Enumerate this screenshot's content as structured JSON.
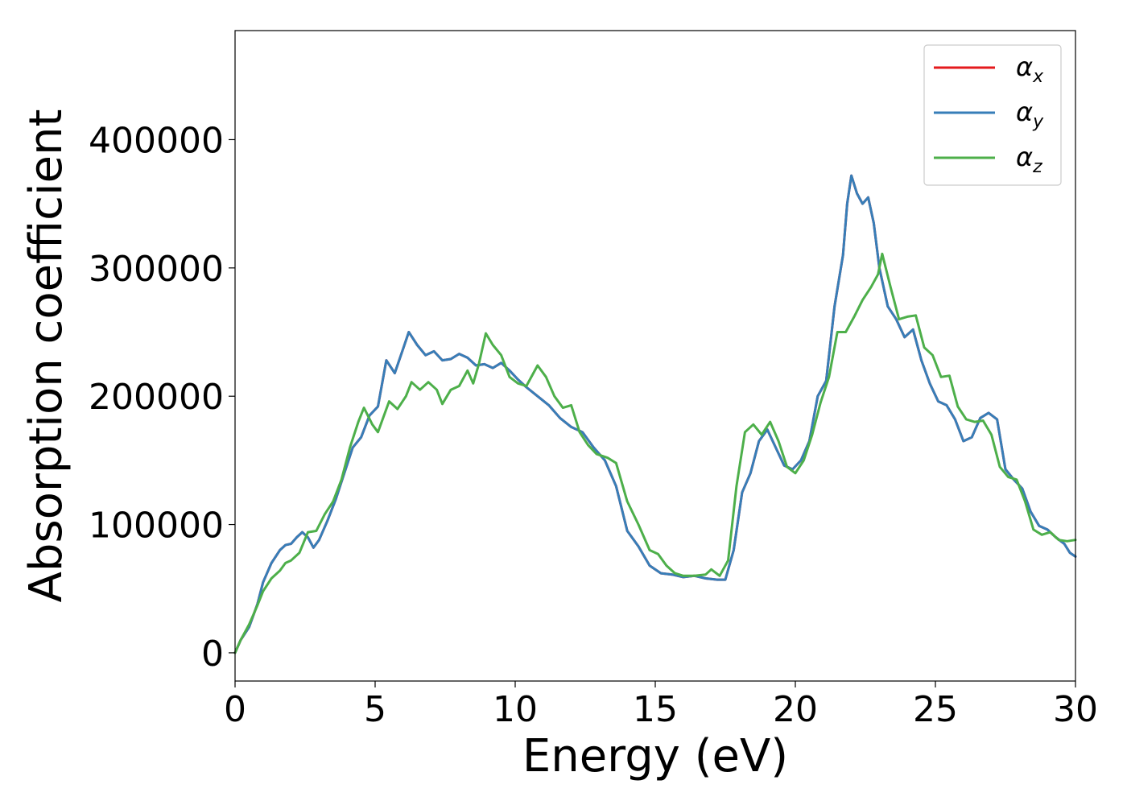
{
  "chart_data": {
    "type": "line",
    "xlabel": "Energy (eV)",
    "ylabel": "Absorption coefficient",
    "xlim": [
      0,
      30
    ],
    "ylim": [
      -22000,
      485000
    ],
    "xticks": [
      0,
      5,
      10,
      15,
      20,
      25,
      30
    ],
    "yticks": [
      0,
      100000,
      200000,
      300000,
      400000
    ],
    "grid": false,
    "legend_position": "top-right",
    "series": [
      {
        "name": "α_x",
        "label_main": "α",
        "label_sub": "x",
        "color": "#e41a1c",
        "points": [
          [
            0,
            0
          ],
          [
            0.2,
            10000
          ],
          [
            0.5,
            20000
          ],
          [
            0.8,
            38000
          ],
          [
            1.0,
            55000
          ],
          [
            1.3,
            70000
          ],
          [
            1.6,
            80000
          ],
          [
            1.8,
            84000
          ],
          [
            2.0,
            85000
          ],
          [
            2.2,
            90000
          ],
          [
            2.4,
            94000
          ],
          [
            2.6,
            90000
          ],
          [
            2.8,
            82000
          ],
          [
            3.0,
            88000
          ],
          [
            3.3,
            103000
          ],
          [
            3.6,
            120000
          ],
          [
            3.9,
            140000
          ],
          [
            4.2,
            160000
          ],
          [
            4.5,
            168000
          ],
          [
            4.8,
            185000
          ],
          [
            5.1,
            192000
          ],
          [
            5.4,
            228000
          ],
          [
            5.7,
            218000
          ],
          [
            6.0,
            237000
          ],
          [
            6.2,
            250000
          ],
          [
            6.5,
            240000
          ],
          [
            6.8,
            232000
          ],
          [
            7.1,
            235000
          ],
          [
            7.4,
            228000
          ],
          [
            7.7,
            229000
          ],
          [
            8.0,
            233000
          ],
          [
            8.3,
            230000
          ],
          [
            8.6,
            224000
          ],
          [
            8.9,
            225000
          ],
          [
            9.2,
            222000
          ],
          [
            9.5,
            226000
          ],
          [
            9.8,
            220000
          ],
          [
            10.1,
            213000
          ],
          [
            10.4,
            207000
          ],
          [
            10.8,
            200000
          ],
          [
            11.2,
            193000
          ],
          [
            11.6,
            183000
          ],
          [
            12.0,
            176000
          ],
          [
            12.4,
            172000
          ],
          [
            12.8,
            160000
          ],
          [
            13.2,
            150000
          ],
          [
            13.6,
            130000
          ],
          [
            14.0,
            95000
          ],
          [
            14.4,
            83000
          ],
          [
            14.8,
            68000
          ],
          [
            15.2,
            62000
          ],
          [
            15.6,
            61000
          ],
          [
            16.0,
            59000
          ],
          [
            16.4,
            60000
          ],
          [
            16.8,
            58000
          ],
          [
            17.2,
            57000
          ],
          [
            17.5,
            57000
          ],
          [
            17.8,
            80000
          ],
          [
            18.1,
            125000
          ],
          [
            18.4,
            140000
          ],
          [
            18.7,
            165000
          ],
          [
            19.0,
            174000
          ],
          [
            19.3,
            160000
          ],
          [
            19.6,
            146000
          ],
          [
            19.9,
            143000
          ],
          [
            20.2,
            150000
          ],
          [
            20.5,
            165000
          ],
          [
            20.8,
            200000
          ],
          [
            21.1,
            212000
          ],
          [
            21.4,
            270000
          ],
          [
            21.7,
            310000
          ],
          [
            21.85,
            350000
          ],
          [
            22.0,
            372000
          ],
          [
            22.2,
            358000
          ],
          [
            22.4,
            350000
          ],
          [
            22.6,
            355000
          ],
          [
            22.8,
            335000
          ],
          [
            23.0,
            300000
          ],
          [
            23.3,
            270000
          ],
          [
            23.6,
            260000
          ],
          [
            23.9,
            246000
          ],
          [
            24.2,
            252000
          ],
          [
            24.5,
            228000
          ],
          [
            24.8,
            210000
          ],
          [
            25.1,
            196000
          ],
          [
            25.4,
            193000
          ],
          [
            25.7,
            182000
          ],
          [
            26.0,
            165000
          ],
          [
            26.3,
            168000
          ],
          [
            26.6,
            183000
          ],
          [
            26.9,
            187000
          ],
          [
            27.2,
            182000
          ],
          [
            27.5,
            143000
          ],
          [
            27.8,
            135000
          ],
          [
            28.1,
            128000
          ],
          [
            28.4,
            110000
          ],
          [
            28.7,
            99000
          ],
          [
            29.0,
            96000
          ],
          [
            29.3,
            90000
          ],
          [
            29.6,
            85000
          ],
          [
            29.8,
            78000
          ],
          [
            30.0,
            75000
          ]
        ]
      },
      {
        "name": "α_y",
        "label_main": "α",
        "label_sub": "y",
        "color": "#377eb8",
        "points": [
          [
            0,
            0
          ],
          [
            0.2,
            10000
          ],
          [
            0.5,
            20000
          ],
          [
            0.8,
            38000
          ],
          [
            1.0,
            55000
          ],
          [
            1.3,
            70000
          ],
          [
            1.6,
            80000
          ],
          [
            1.8,
            84000
          ],
          [
            2.0,
            85000
          ],
          [
            2.2,
            90000
          ],
          [
            2.4,
            94000
          ],
          [
            2.6,
            90000
          ],
          [
            2.8,
            82000
          ],
          [
            3.0,
            88000
          ],
          [
            3.3,
            103000
          ],
          [
            3.6,
            120000
          ],
          [
            3.9,
            140000
          ],
          [
            4.2,
            160000
          ],
          [
            4.5,
            168000
          ],
          [
            4.8,
            185000
          ],
          [
            5.1,
            192000
          ],
          [
            5.4,
            228000
          ],
          [
            5.7,
            218000
          ],
          [
            6.0,
            237000
          ],
          [
            6.2,
            250000
          ],
          [
            6.5,
            240000
          ],
          [
            6.8,
            232000
          ],
          [
            7.1,
            235000
          ],
          [
            7.4,
            228000
          ],
          [
            7.7,
            229000
          ],
          [
            8.0,
            233000
          ],
          [
            8.3,
            230000
          ],
          [
            8.6,
            224000
          ],
          [
            8.9,
            225000
          ],
          [
            9.2,
            222000
          ],
          [
            9.5,
            226000
          ],
          [
            9.8,
            220000
          ],
          [
            10.1,
            213000
          ],
          [
            10.4,
            207000
          ],
          [
            10.8,
            200000
          ],
          [
            11.2,
            193000
          ],
          [
            11.6,
            183000
          ],
          [
            12.0,
            176000
          ],
          [
            12.4,
            172000
          ],
          [
            12.8,
            160000
          ],
          [
            13.2,
            150000
          ],
          [
            13.6,
            130000
          ],
          [
            14.0,
            95000
          ],
          [
            14.4,
            83000
          ],
          [
            14.8,
            68000
          ],
          [
            15.2,
            62000
          ],
          [
            15.6,
            61000
          ],
          [
            16.0,
            59000
          ],
          [
            16.4,
            60000
          ],
          [
            16.8,
            58000
          ],
          [
            17.2,
            57000
          ],
          [
            17.5,
            57000
          ],
          [
            17.8,
            80000
          ],
          [
            18.1,
            125000
          ],
          [
            18.4,
            140000
          ],
          [
            18.7,
            165000
          ],
          [
            19.0,
            174000
          ],
          [
            19.3,
            160000
          ],
          [
            19.6,
            146000
          ],
          [
            19.9,
            143000
          ],
          [
            20.2,
            150000
          ],
          [
            20.5,
            165000
          ],
          [
            20.8,
            200000
          ],
          [
            21.1,
            212000
          ],
          [
            21.4,
            270000
          ],
          [
            21.7,
            310000
          ],
          [
            21.85,
            350000
          ],
          [
            22.0,
            372000
          ],
          [
            22.2,
            358000
          ],
          [
            22.4,
            350000
          ],
          [
            22.6,
            355000
          ],
          [
            22.8,
            335000
          ],
          [
            23.0,
            300000
          ],
          [
            23.3,
            270000
          ],
          [
            23.6,
            260000
          ],
          [
            23.9,
            246000
          ],
          [
            24.2,
            252000
          ],
          [
            24.5,
            228000
          ],
          [
            24.8,
            210000
          ],
          [
            25.1,
            196000
          ],
          [
            25.4,
            193000
          ],
          [
            25.7,
            182000
          ],
          [
            26.0,
            165000
          ],
          [
            26.3,
            168000
          ],
          [
            26.6,
            183000
          ],
          [
            26.9,
            187000
          ],
          [
            27.2,
            182000
          ],
          [
            27.5,
            143000
          ],
          [
            27.8,
            135000
          ],
          [
            28.1,
            128000
          ],
          [
            28.4,
            110000
          ],
          [
            28.7,
            99000
          ],
          [
            29.0,
            96000
          ],
          [
            29.3,
            90000
          ],
          [
            29.6,
            85000
          ],
          [
            29.8,
            78000
          ],
          [
            30.0,
            75000
          ]
        ]
      },
      {
        "name": "α_z",
        "label_main": "α",
        "label_sub": "z",
        "color": "#4daf4a",
        "points": [
          [
            0,
            0
          ],
          [
            0.2,
            10000
          ],
          [
            0.5,
            22000
          ],
          [
            0.8,
            37000
          ],
          [
            1.0,
            48000
          ],
          [
            1.3,
            58000
          ],
          [
            1.6,
            64000
          ],
          [
            1.8,
            70000
          ],
          [
            2.0,
            72000
          ],
          [
            2.3,
            78000
          ],
          [
            2.6,
            94000
          ],
          [
            2.9,
            95000
          ],
          [
            3.2,
            108000
          ],
          [
            3.5,
            118000
          ],
          [
            3.8,
            135000
          ],
          [
            4.1,
            160000
          ],
          [
            4.4,
            180000
          ],
          [
            4.6,
            191000
          ],
          [
            4.9,
            178000
          ],
          [
            5.1,
            172000
          ],
          [
            5.5,
            196000
          ],
          [
            5.8,
            190000
          ],
          [
            6.1,
            200000
          ],
          [
            6.3,
            211000
          ],
          [
            6.6,
            205000
          ],
          [
            6.9,
            211000
          ],
          [
            7.2,
            205000
          ],
          [
            7.4,
            194000
          ],
          [
            7.7,
            205000
          ],
          [
            8.0,
            208000
          ],
          [
            8.3,
            220000
          ],
          [
            8.5,
            210000
          ],
          [
            8.7,
            225000
          ],
          [
            8.95,
            249000
          ],
          [
            9.2,
            240000
          ],
          [
            9.5,
            232000
          ],
          [
            9.8,
            215000
          ],
          [
            10.1,
            210000
          ],
          [
            10.4,
            208000
          ],
          [
            10.8,
            224000
          ],
          [
            11.1,
            215000
          ],
          [
            11.4,
            200000
          ],
          [
            11.7,
            191000
          ],
          [
            12.0,
            193000
          ],
          [
            12.3,
            172000
          ],
          [
            12.6,
            162000
          ],
          [
            12.9,
            155000
          ],
          [
            13.3,
            152000
          ],
          [
            13.6,
            148000
          ],
          [
            14.0,
            118000
          ],
          [
            14.4,
            100000
          ],
          [
            14.8,
            80000
          ],
          [
            15.1,
            77000
          ],
          [
            15.4,
            68000
          ],
          [
            15.7,
            62000
          ],
          [
            16.0,
            60000
          ],
          [
            16.4,
            60000
          ],
          [
            16.8,
            61000
          ],
          [
            17.0,
            65000
          ],
          [
            17.3,
            60000
          ],
          [
            17.6,
            72000
          ],
          [
            17.9,
            130000
          ],
          [
            18.2,
            172000
          ],
          [
            18.5,
            178000
          ],
          [
            18.8,
            170000
          ],
          [
            19.1,
            180000
          ],
          [
            19.4,
            165000
          ],
          [
            19.7,
            145000
          ],
          [
            20.0,
            140000
          ],
          [
            20.3,
            150000
          ],
          [
            20.6,
            170000
          ],
          [
            20.9,
            195000
          ],
          [
            21.2,
            215000
          ],
          [
            21.5,
            250000
          ],
          [
            21.8,
            250000
          ],
          [
            22.1,
            262000
          ],
          [
            22.4,
            275000
          ],
          [
            22.7,
            285000
          ],
          [
            22.95,
            295000
          ],
          [
            23.1,
            311000
          ],
          [
            23.4,
            285000
          ],
          [
            23.7,
            260000
          ],
          [
            24.0,
            262000
          ],
          [
            24.3,
            263000
          ],
          [
            24.6,
            238000
          ],
          [
            24.9,
            232000
          ],
          [
            25.2,
            215000
          ],
          [
            25.5,
            216000
          ],
          [
            25.8,
            192000
          ],
          [
            26.1,
            182000
          ],
          [
            26.4,
            180000
          ],
          [
            26.7,
            181000
          ],
          [
            27.0,
            170000
          ],
          [
            27.3,
            145000
          ],
          [
            27.6,
            137000
          ],
          [
            27.9,
            135000
          ],
          [
            28.2,
            118000
          ],
          [
            28.5,
            96000
          ],
          [
            28.8,
            92000
          ],
          [
            29.1,
            94000
          ],
          [
            29.4,
            88000
          ],
          [
            29.7,
            87000
          ],
          [
            30.0,
            88000
          ]
        ]
      }
    ]
  }
}
